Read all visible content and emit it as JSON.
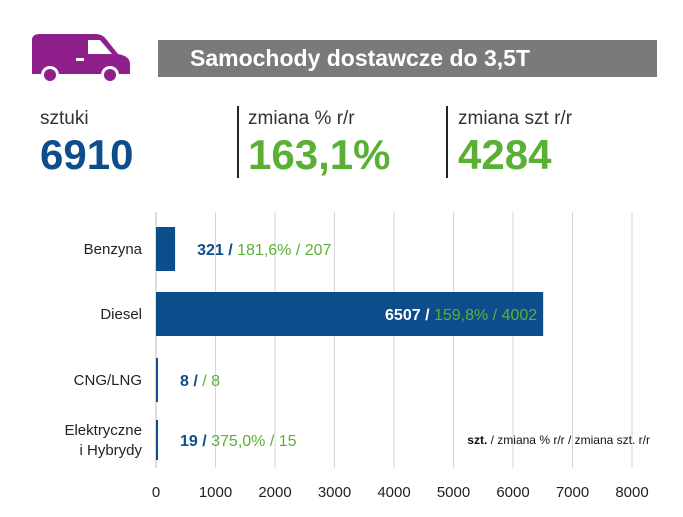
{
  "header": {
    "title": "Samochody dostawcze do 3,5T",
    "icon": "van-icon",
    "icon_color": "#8e1f8c"
  },
  "kpis": [
    {
      "label": "sztuki",
      "value": "6910"
    },
    {
      "label": "zmiana % r/r",
      "value": "163,1%"
    },
    {
      "label": "zmiana szt r/r",
      "value": "4284"
    }
  ],
  "colors": {
    "blue": "#0d4d8c",
    "green": "#5ab035",
    "header_bg": "#7a7a7a",
    "van": "#8e1f8c"
  },
  "chart_data": {
    "type": "bar",
    "orientation": "horizontal",
    "categories": [
      [
        "Benzyna"
      ],
      [
        "Diesel"
      ],
      [
        "CNG/LNG"
      ],
      [
        "Elektryczne",
        "i Hybrydy"
      ]
    ],
    "values": [
      321,
      6507,
      8,
      19
    ],
    "change_pct": [
      "181,6%",
      "159,8%",
      "",
      "375,0%"
    ],
    "change_units": [
      207,
      4002,
      8,
      15
    ],
    "xlim": [
      0,
      8000
    ],
    "xticks": [
      0,
      1000,
      2000,
      3000,
      4000,
      5000,
      6000,
      7000,
      8000
    ],
    "grid": true,
    "legend": {
      "bold": "szt.",
      "rest": " / zmiana % r/r / zmiana szt. r/r"
    }
  }
}
